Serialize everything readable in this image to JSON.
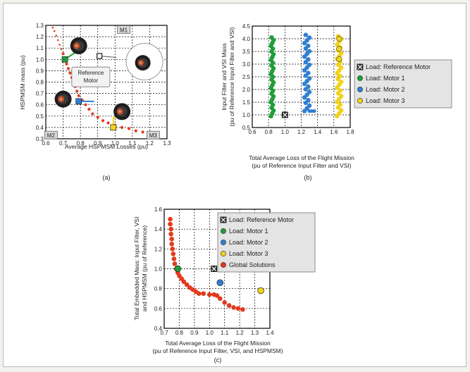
{
  "colors": {
    "green": "#1f9e3a",
    "blue": "#2f7fd2",
    "yellow": "#f2d21a",
    "red": "#e23a1c",
    "orange_curve": "#f26a21",
    "ref": "#333333",
    "grid": "#000000"
  },
  "chart_data": [
    {
      "id": "a",
      "type": "scatter",
      "caption": "(a)",
      "xlabel": "Average HSPMSM Losses (pu)",
      "ylabel": "HSPMSM mass (pu)",
      "xlim": [
        0.6,
        1.3
      ],
      "ylim": [
        0.3,
        1.3
      ],
      "xticks": [
        "0.6",
        "0.7",
        "0.8",
        "0.9",
        "1.0",
        "1.1",
        "1.2",
        "1.3"
      ],
      "yticks": [
        "0.3",
        "0.4",
        "0.5",
        "0.6",
        "0.7",
        "0.8",
        "0.9",
        "1.0",
        "1.1",
        "1.2",
        "1.3"
      ],
      "grid": true,
      "box_labels": [
        "M1",
        "M2",
        "M3"
      ],
      "callout": "Reference\nMotor",
      "icons": [
        "motor-icon"
      ],
      "series": [
        {
          "color": "red",
          "points": [
            [
              0.64,
              1.28
            ],
            [
              0.65,
              1.25
            ],
            [
              0.66,
              1.21
            ],
            [
              0.67,
              1.17
            ],
            [
              0.68,
              1.13
            ],
            [
              0.69,
              1.09
            ],
            [
              0.7,
              1.05
            ],
            [
              0.71,
              1.0
            ],
            [
              0.72,
              0.96
            ],
            [
              0.73,
              0.92
            ],
            [
              0.74,
              0.88
            ],
            [
              0.75,
              0.84
            ],
            [
              0.76,
              0.8
            ],
            [
              0.77,
              0.76
            ],
            [
              0.78,
              0.72
            ],
            [
              0.79,
              0.68
            ],
            [
              0.81,
              0.64
            ],
            [
              0.83,
              0.6
            ],
            [
              0.85,
              0.56
            ],
            [
              0.87,
              0.52
            ],
            [
              0.9,
              0.49
            ],
            [
              0.93,
              0.46
            ],
            [
              0.96,
              0.44
            ],
            [
              1.0,
              0.42
            ],
            [
              1.04,
              0.4
            ],
            [
              1.08,
              0.39
            ],
            [
              1.12,
              0.37
            ],
            [
              1.16,
              0.36
            ],
            [
              1.2,
              0.35
            ],
            [
              1.24,
              0.34
            ]
          ]
        }
      ],
      "markers": [
        {
          "x": 0.71,
          "y": 1.0,
          "color": "green",
          "shape": "square"
        },
        {
          "x": 0.79,
          "y": 0.63,
          "color": "blue",
          "shape": "square"
        },
        {
          "x": 0.99,
          "y": 0.4,
          "color": "yellow",
          "shape": "square"
        },
        {
          "x": 0.91,
          "y": 1.03,
          "color": "ref",
          "shape": "square-open"
        }
      ]
    },
    {
      "id": "b",
      "type": "scatter",
      "caption": "(b)",
      "xlabel": "Total Average Loss of the Flight Mission",
      "xlabel2": "(pu of Reference Input Filter and VSI)",
      "ylabel": "Input Filter and VSI Mass",
      "ylabel2": "(pu of Reference Input Filter and VSI)",
      "xlim": [
        0.6,
        1.8
      ],
      "ylim": [
        0.5,
        4.5
      ],
      "xticks": [
        "0.6",
        "0.8",
        "1.0",
        "1.2",
        "1.4",
        "1.6",
        "1.8"
      ],
      "yticks": [
        "0.5",
        "1.0",
        "1.5",
        "2.0",
        "2.5",
        "3.0",
        "3.5",
        "4.0",
        "4.5"
      ],
      "grid": true,
      "legend_position": "right",
      "legend": [
        {
          "label": "Load: Reference Motor",
          "color": "ref",
          "marker": "x-square"
        },
        {
          "label": "Load: Motor 1",
          "color": "green",
          "marker": "circle"
        },
        {
          "label": "Load: Motor 2",
          "color": "blue",
          "marker": "circle"
        },
        {
          "label": "Load: Motor 3",
          "color": "yellow",
          "marker": "circle"
        }
      ],
      "series": [
        {
          "name": "Load: Motor 1",
          "color": "green",
          "x_range": [
            0.83,
            0.86
          ],
          "y_range": [
            0.95,
            4.05
          ]
        },
        {
          "name": "Load: Motor 2",
          "color": "blue",
          "x_range": [
            1.24,
            1.3
          ],
          "y_range": [
            1.15,
            4.15
          ]
        },
        {
          "name": "Load: Motor 3",
          "color": "yellow",
          "x_range": [
            1.64,
            1.69
          ],
          "y_range": [
            0.95,
            4.1
          ]
        }
      ],
      "ref_point": {
        "x": 1.0,
        "y": 1.0
      }
    },
    {
      "id": "c",
      "type": "scatter",
      "caption": "(c)",
      "xlabel": "Total Average Loss of the Flight Mission",
      "xlabel2": "(pu of Reference Input Filter, VSI, and HSPMSM)",
      "ylabel": "Total Embedded Mass: Input Filter, VSI",
      "ylabel2": "and HSPMSM (pu of Reference)",
      "xlim": [
        0.7,
        1.4
      ],
      "ylim": [
        0.4,
        1.6
      ],
      "xticks": [
        "0.7",
        "0.8",
        "0.9",
        "1.0",
        "1.1",
        "1.2",
        "1.3",
        "1.4"
      ],
      "yticks": [
        "0.4",
        "0.6",
        "0.8",
        "1.0",
        "1.2",
        "1.4",
        "1.6"
      ],
      "grid": true,
      "legend_position": "top-right",
      "legend": [
        {
          "label": "Load: Reference Motor",
          "color": "ref",
          "marker": "x-square"
        },
        {
          "label": "Load: Motor 1",
          "color": "green",
          "marker": "circle"
        },
        {
          "label": "Load: Motor 2",
          "color": "blue",
          "marker": "circle"
        },
        {
          "label": "Load: Motor 3",
          "color": "yellow",
          "marker": "circle"
        },
        {
          "label": "Global Solutions",
          "color": "red",
          "marker": "circle"
        }
      ],
      "series": [
        {
          "name": "Global Solutions",
          "color": "red",
          "points": [
            [
              0.74,
              1.5
            ],
            [
              0.74,
              1.45
            ],
            [
              0.745,
              1.4
            ],
            [
              0.745,
              1.35
            ],
            [
              0.75,
              1.3
            ],
            [
              0.75,
              1.25
            ],
            [
              0.755,
              1.2
            ],
            [
              0.76,
              1.15
            ],
            [
              0.765,
              1.1
            ],
            [
              0.77,
              1.05
            ],
            [
              0.78,
              1.0
            ],
            [
              0.79,
              0.96
            ],
            [
              0.8,
              0.93
            ],
            [
              0.815,
              0.9
            ],
            [
              0.83,
              0.87
            ],
            [
              0.85,
              0.84
            ],
            [
              0.87,
              0.81
            ],
            [
              0.89,
              0.79
            ],
            [
              0.91,
              0.77
            ],
            [
              0.93,
              0.75
            ],
            [
              0.96,
              0.75
            ],
            [
              1.0,
              0.74
            ],
            [
              1.03,
              0.74
            ],
            [
              1.05,
              0.73
            ],
            [
              1.07,
              0.7
            ],
            [
              1.1,
              0.66
            ],
            [
              1.13,
              0.63
            ],
            [
              1.16,
              0.61
            ],
            [
              1.19,
              0.6
            ],
            [
              1.22,
              0.59
            ]
          ]
        }
      ],
      "markers": [
        {
          "name": "Load: Reference Motor",
          "x": 1.03,
          "y": 1.0,
          "color": "ref",
          "shape": "x-square"
        },
        {
          "name": "Load: Motor 1",
          "x": 0.79,
          "y": 1.0,
          "color": "green",
          "shape": "circle"
        },
        {
          "name": "Load: Motor 2",
          "x": 1.07,
          "y": 0.86,
          "color": "blue",
          "shape": "circle"
        },
        {
          "name": "Load: Motor 3",
          "x": 1.34,
          "y": 0.78,
          "color": "yellow",
          "shape": "circle"
        }
      ]
    }
  ]
}
